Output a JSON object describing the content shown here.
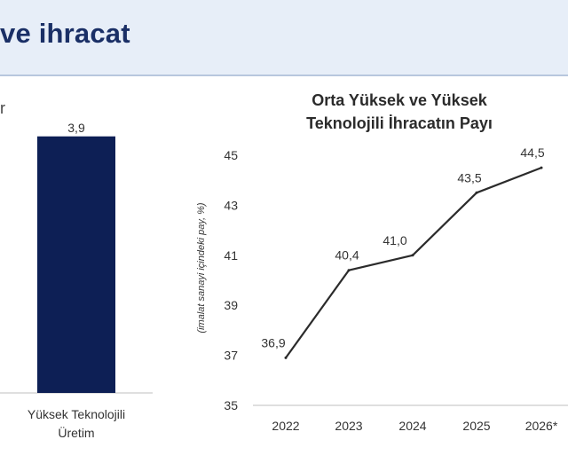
{
  "header": {
    "title": "ve ihracat"
  },
  "left_fragment": "r",
  "chart_data": [
    {
      "type": "bar",
      "title": "",
      "categories": [
        "Yüksek Teknolojili Üretim"
      ],
      "category_lines": [
        [
          "Yüksek Teknolojili",
          "Üretim"
        ]
      ],
      "values": [
        3.9
      ],
      "value_labels": [
        "3,9"
      ],
      "color": "#0d1f55",
      "ylim": [
        0,
        4.8
      ]
    },
    {
      "type": "line",
      "title_lines": [
        "Orta Yüksek ve Yüksek",
        "Teknolojili İhracatın Payı"
      ],
      "ylabel": "(imalat sanayi içindeki pay, %)",
      "xlabel": "",
      "x": [
        "2022",
        "2023",
        "2024",
        "2025",
        "2026*"
      ],
      "values": [
        36.9,
        40.4,
        41.0,
        43.5,
        44.5
      ],
      "value_labels": [
        "36,9",
        "40,4",
        "41,0",
        "43,5",
        "44,5"
      ],
      "ylim": [
        35,
        45
      ],
      "yticks": [
        "35",
        "37",
        "39",
        "41",
        "43",
        "45"
      ],
      "line_color": "#2b2b2b",
      "grid": false
    }
  ]
}
